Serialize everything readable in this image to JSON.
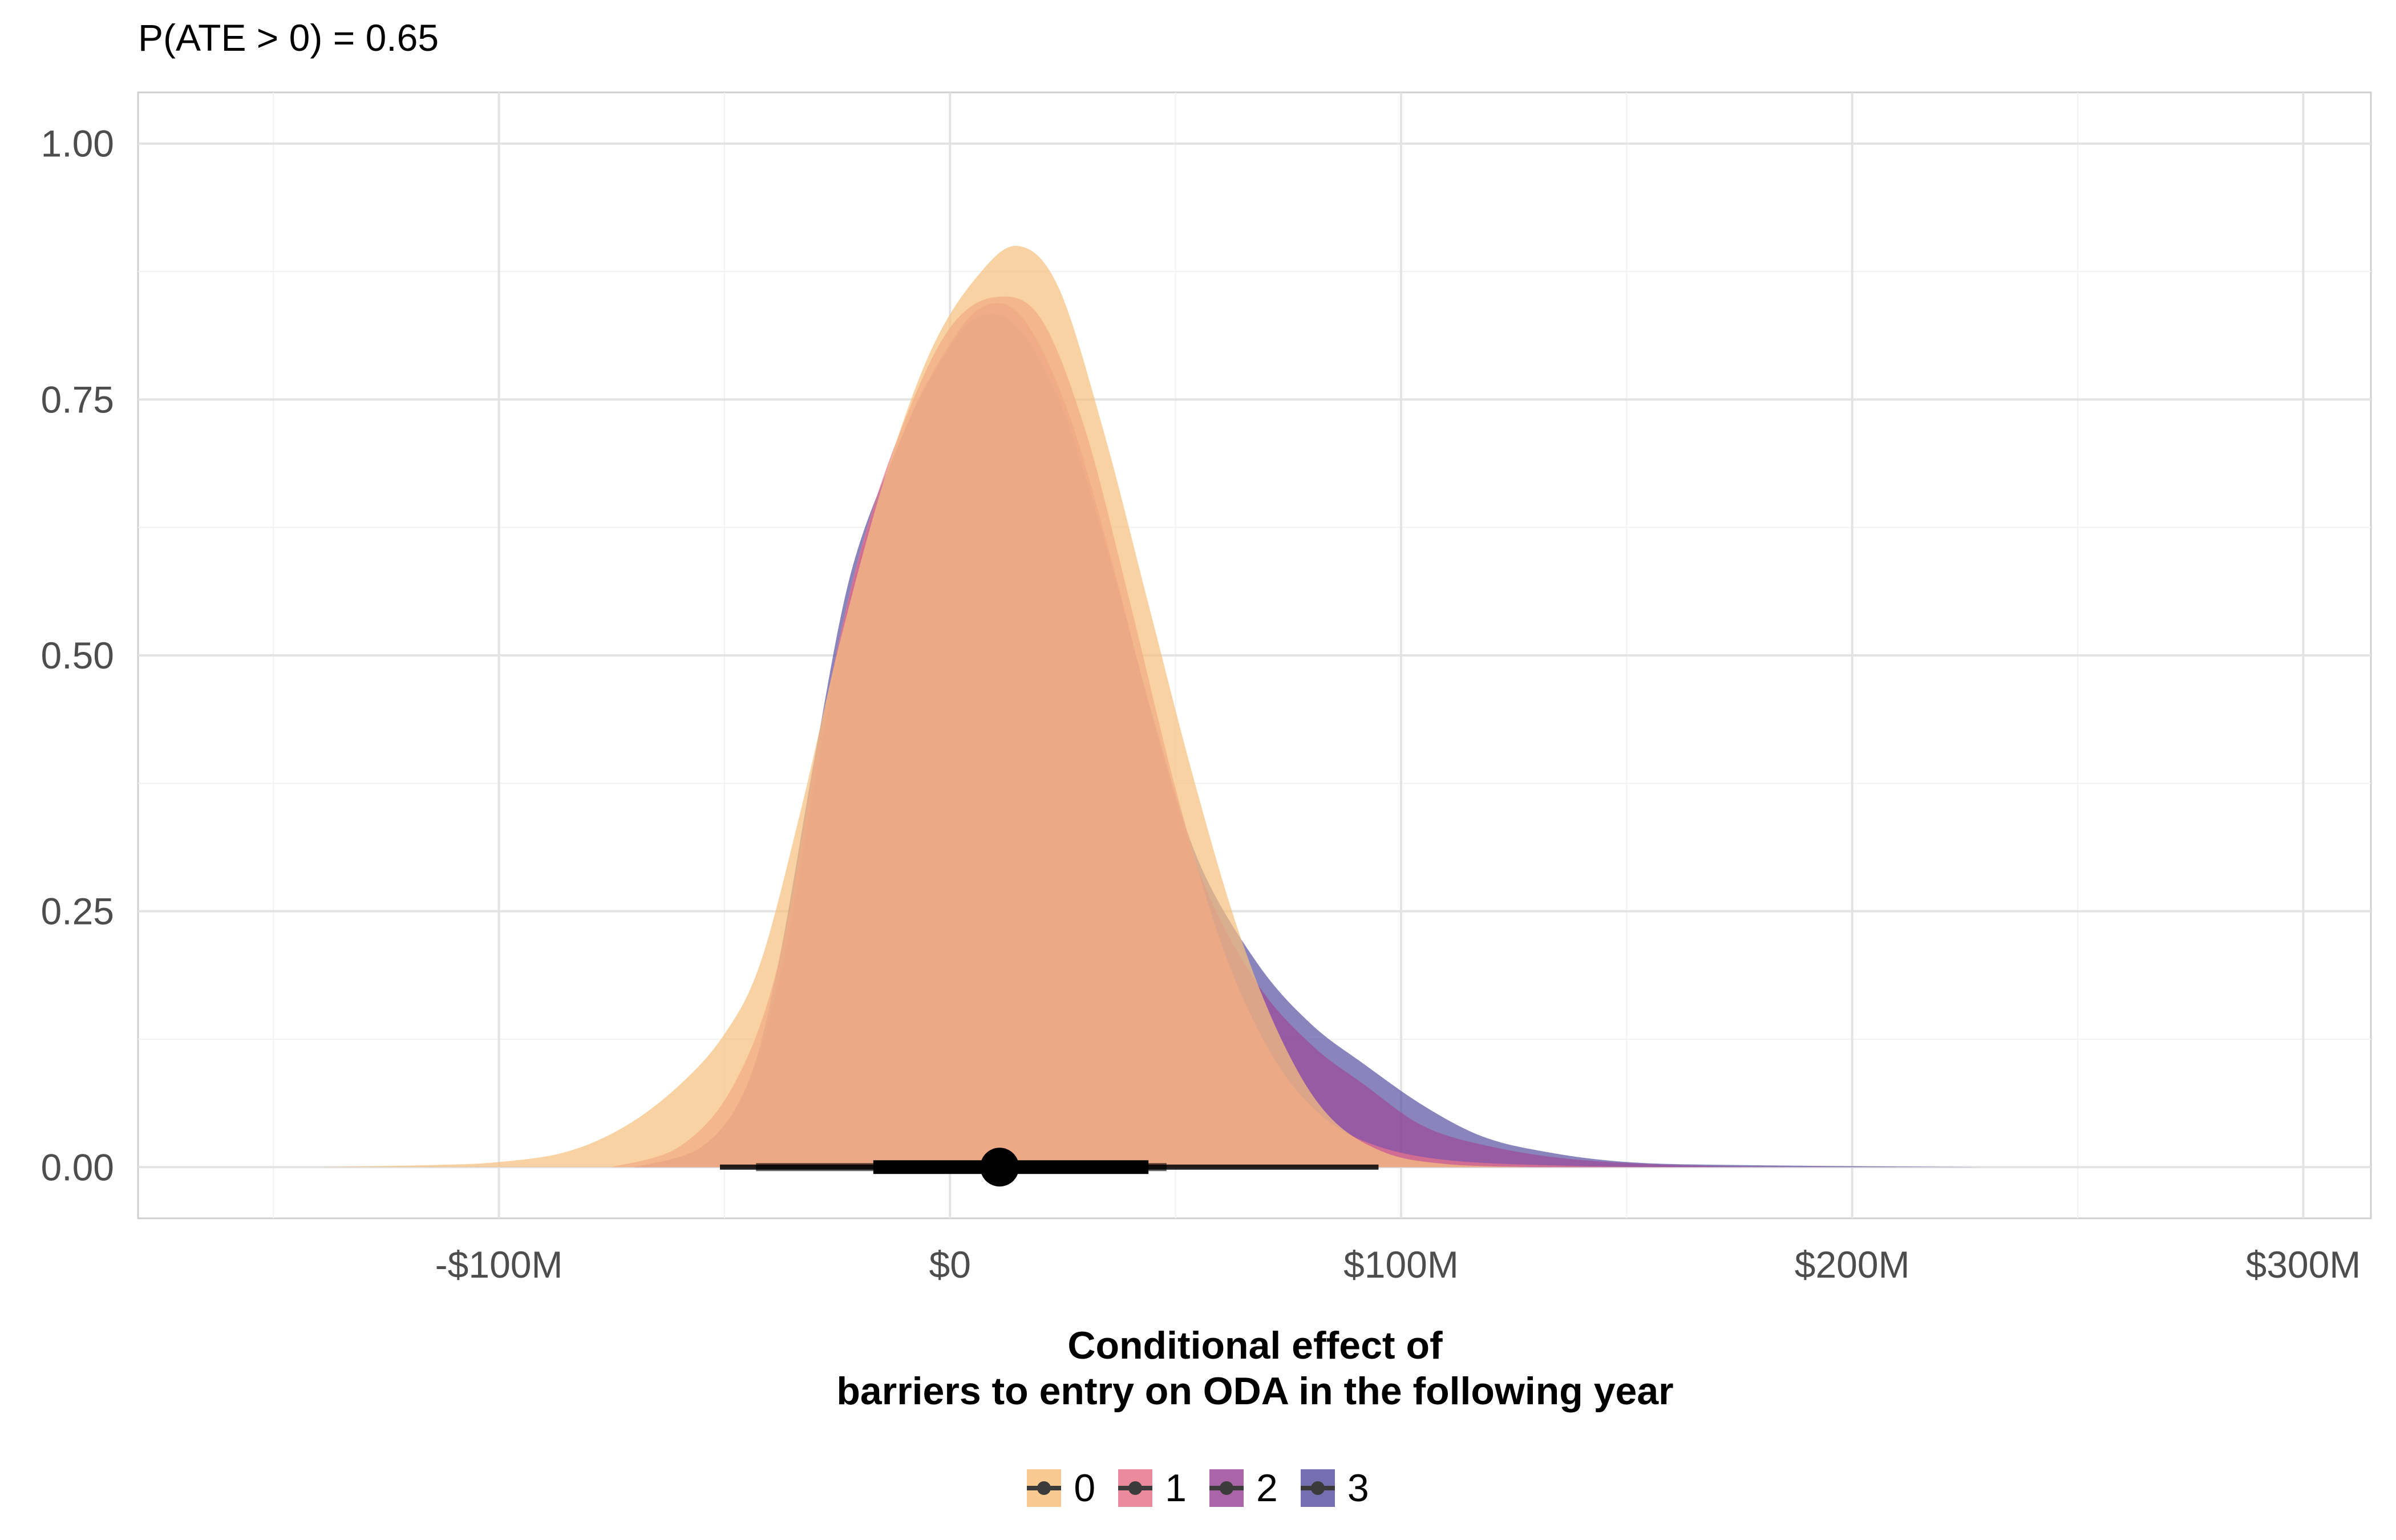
{
  "subtitle": "P(ATE > 0) = 0.65",
  "chart_data": {
    "type": "area",
    "title": "",
    "subtitle": "P(ATE > 0) = 0.65",
    "xlabel_lines": [
      "Conditional effect of",
      "barriers to entry on ODA in the following year"
    ],
    "ylabel": "",
    "xlim": [
      -180,
      315
    ],
    "ylim": [
      -0.05,
      1.05
    ],
    "x_ticks": [
      {
        "value": -100,
        "label": "-$100M"
      },
      {
        "value": 0,
        "label": "$0"
      },
      {
        "value": 100,
        "label": "$100M"
      },
      {
        "value": 200,
        "label": "$200M"
      },
      {
        "value": 300,
        "label": "$300M"
      }
    ],
    "y_ticks": [
      {
        "value": 0,
        "label": "0.00"
      },
      {
        "value": 0.25,
        "label": "0.25"
      },
      {
        "value": 0.5,
        "label": "0.50"
      },
      {
        "value": 0.75,
        "label": "0.75"
      },
      {
        "value": 1,
        "label": "1.00"
      }
    ],
    "grid": true,
    "legend_position": "bottom",
    "series": [
      {
        "name": "3",
        "color": "#5D55A3",
        "opacity": 0.72,
        "density": [
          [
            -70,
            0
          ],
          [
            -55,
            0.02
          ],
          [
            -45,
            0.08
          ],
          [
            -38,
            0.2
          ],
          [
            -30,
            0.4
          ],
          [
            -22,
            0.58
          ],
          [
            -12,
            0.7
          ],
          [
            -3,
            0.78
          ],
          [
            6,
            0.83
          ],
          [
            15,
            0.82
          ],
          [
            25,
            0.74
          ],
          [
            35,
            0.6
          ],
          [
            45,
            0.44
          ],
          [
            55,
            0.3
          ],
          [
            68,
            0.2
          ],
          [
            80,
            0.14
          ],
          [
            92,
            0.1
          ],
          [
            105,
            0.06
          ],
          [
            118,
            0.03
          ],
          [
            132,
            0.015
          ],
          [
            150,
            0.005
          ],
          [
            175,
            0.002
          ],
          [
            230,
            0
          ]
        ]
      },
      {
        "name": "2",
        "color": "#9B4B98",
        "opacity": 0.72,
        "density": [
          [
            -70,
            0
          ],
          [
            -55,
            0.02
          ],
          [
            -45,
            0.08
          ],
          [
            -37,
            0.2
          ],
          [
            -29,
            0.4
          ],
          [
            -21,
            0.58
          ],
          [
            -11,
            0.71
          ],
          [
            -2,
            0.79
          ],
          [
            7,
            0.84
          ],
          [
            16,
            0.83
          ],
          [
            26,
            0.74
          ],
          [
            36,
            0.59
          ],
          [
            46,
            0.42
          ],
          [
            56,
            0.28
          ],
          [
            68,
            0.18
          ],
          [
            80,
            0.12
          ],
          [
            92,
            0.08
          ],
          [
            105,
            0.04
          ],
          [
            120,
            0.02
          ],
          [
            140,
            0.007
          ],
          [
            170,
            0.001
          ],
          [
            210,
            0
          ]
        ]
      },
      {
        "name": "1",
        "color": "#E8758C",
        "opacity": 0.72,
        "density": [
          [
            -75,
            0
          ],
          [
            -60,
            0.02
          ],
          [
            -48,
            0.08
          ],
          [
            -38,
            0.2
          ],
          [
            -29,
            0.42
          ],
          [
            -20,
            0.6
          ],
          [
            -10,
            0.73
          ],
          [
            0,
            0.82
          ],
          [
            10,
            0.85
          ],
          [
            20,
            0.83
          ],
          [
            30,
            0.72
          ],
          [
            40,
            0.55
          ],
          [
            50,
            0.37
          ],
          [
            60,
            0.22
          ],
          [
            70,
            0.12
          ],
          [
            80,
            0.06
          ],
          [
            92,
            0.025
          ],
          [
            110,
            0.007
          ],
          [
            140,
            0.001
          ],
          [
            170,
            0
          ]
        ]
      },
      {
        "name": "0",
        "color": "#F7C180",
        "opacity": 0.72,
        "density": [
          [
            -140,
            0
          ],
          [
            -115,
            0.002
          ],
          [
            -100,
            0.005
          ],
          [
            -85,
            0.015
          ],
          [
            -72,
            0.04
          ],
          [
            -60,
            0.08
          ],
          [
            -50,
            0.13
          ],
          [
            -42,
            0.2
          ],
          [
            -33,
            0.35
          ],
          [
            -24,
            0.52
          ],
          [
            -14,
            0.68
          ],
          [
            -4,
            0.8
          ],
          [
            6,
            0.87
          ],
          [
            15,
            0.9
          ],
          [
            24,
            0.86
          ],
          [
            34,
            0.72
          ],
          [
            44,
            0.55
          ],
          [
            54,
            0.38
          ],
          [
            64,
            0.23
          ],
          [
            74,
            0.12
          ],
          [
            84,
            0.05
          ],
          [
            96,
            0.015
          ],
          [
            110,
            0.003
          ],
          [
            130,
            0
          ]
        ]
      }
    ],
    "interval": {
      "point": 11,
      "inner": [
        -17,
        44
      ],
      "middle": [
        -43,
        48
      ],
      "outer": [
        -51,
        95
      ]
    }
  },
  "legend": [
    {
      "label": "0",
      "color": "#F7C180"
    },
    {
      "label": "1",
      "color": "#E8758C"
    },
    {
      "label": "2",
      "color": "#9B4B98"
    },
    {
      "label": "3",
      "color": "#5D55A3"
    }
  ]
}
